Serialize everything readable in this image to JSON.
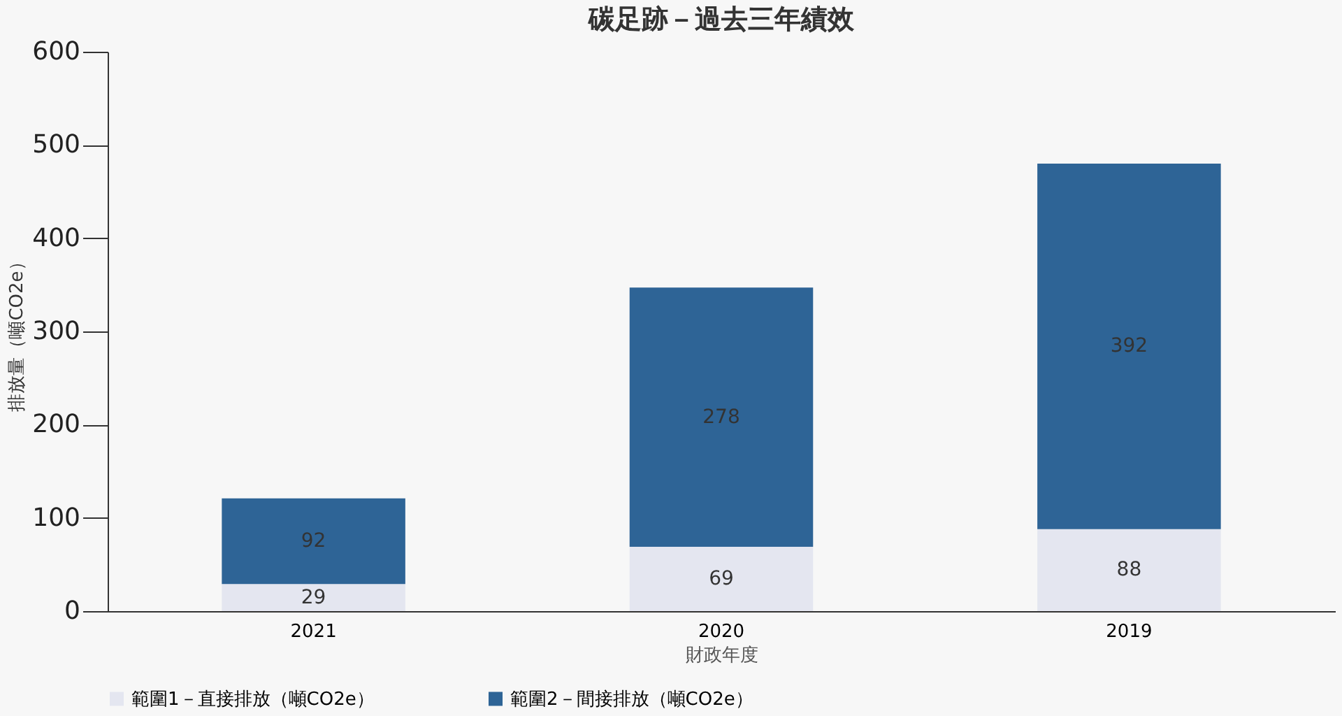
{
  "chart_data": {
    "type": "bar",
    "title": "碳足跡－過去三年績效",
    "xlabel": "財政年度",
    "ylabel": "排放量（噸CO2e）",
    "categories": [
      "2021",
      "2020",
      "2019"
    ],
    "series": [
      {
        "name": "範圍1－直接排放（噸CO2e）",
        "color": "#e4e6f0",
        "values": [
          29,
          69,
          88
        ]
      },
      {
        "name": "範圍2－間接排放（噸CO2e）",
        "color": "#2e6496",
        "values": [
          92,
          278,
          392
        ]
      }
    ],
    "stacked": true,
    "ylim": [
      0,
      600
    ],
    "yticks": [
      0,
      100,
      200,
      300,
      400,
      500,
      600
    ],
    "grid": false,
    "legend": "bottom",
    "data_labels": true
  }
}
